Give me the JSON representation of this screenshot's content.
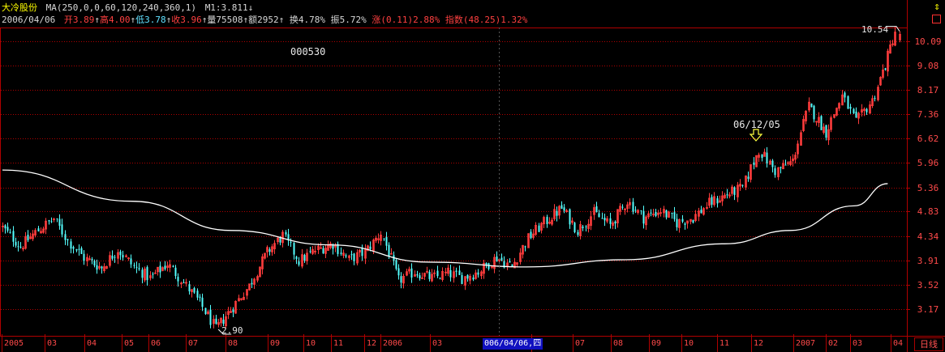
{
  "info": {
    "name": "大冷股份",
    "ma_label": "MA(250,0,0,60,120,240,360,1)",
    "m1_label": "M1:3.811",
    "m1_arrow": "↓",
    "date": "2006/04/06",
    "open_label": "开",
    "open": "3.89",
    "open_arrow": "↑",
    "high_label": "高",
    "high": "4.00",
    "high_arrow": "↑",
    "low_label": "低",
    "low": "3.78",
    "low_arrow": "↑",
    "close_label": "收",
    "close": "3.96",
    "close_arrow": "↑",
    "volume_label": "量",
    "volume": "75508",
    "volume_arrow": "↑",
    "amount_label": "额",
    "amount": "2952",
    "amount_arrow": "↑",
    "turnover_label": "换",
    "turnover": "4.78%",
    "amplitude_label": "振",
    "amplitude": "5.72%",
    "change_label": "涨",
    "change": "(0.11)2.88%",
    "index_label": "指数",
    "index": "(48.25)1.32%"
  },
  "controls": {
    "top_arrow": "⇕"
  },
  "chart": {
    "code": "000530",
    "signal_date": "06/12/05",
    "high_value": "10.54",
    "low_value": "2.90",
    "cursor_date": "006/04/06,四",
    "period": "日线",
    "y_ticks": [
      "10.09",
      "9.08",
      "8.17",
      "7.36",
      "6.62",
      "5.96",
      "5.36",
      "4.83",
      "4.34",
      "3.91",
      "3.52",
      "3.17"
    ],
    "x_ticks": [
      "2005",
      "03",
      "04",
      "05",
      "06",
      "07",
      "08",
      "09",
      "10",
      "11",
      "12",
      "2006",
      "03",
      "06",
      "07",
      "08",
      "09",
      "10",
      "11",
      "12",
      "2007",
      "02",
      "03",
      "04"
    ]
  },
  "colors": {
    "background": "#000000",
    "up_candle": "#ff3c3c",
    "down_candle": "#54ffff",
    "grid": "#b00000",
    "ma_line": "#ffffff",
    "axis_text": "#ff4a4a"
  },
  "chart_data": {
    "type": "candlestick",
    "title": "大冷股份 000530",
    "period": "日线",
    "log_scale": true,
    "ylim": [
      2.85,
      10.6
    ],
    "x_range": [
      "2005-01",
      "2007-04"
    ],
    "grid": true,
    "y_ticks": [
      10.09,
      9.08,
      8.17,
      7.36,
      6.62,
      5.96,
      5.36,
      4.83,
      4.34,
      3.91,
      3.52,
      3.17
    ],
    "high_marker": 10.54,
    "low_marker": 2.9,
    "signal_date": "06/12/05",
    "price_path": [
      {
        "date": "2005-01",
        "close": 4.55
      },
      {
        "date": "2005-01-20",
        "close": 4.15
      },
      {
        "date": "2005-02-05",
        "close": 4.45
      },
      {
        "date": "2005-02-20",
        "close": 4.68
      },
      {
        "date": "2005-03-05",
        "close": 4.25
      },
      {
        "date": "2005-03-20",
        "close": 3.95
      },
      {
        "date": "2005-04-05",
        "close": 3.78
      },
      {
        "date": "2005-04-20",
        "close": 4.1
      },
      {
        "date": "2005-05-05",
        "close": 3.8
      },
      {
        "date": "2005-05-20",
        "close": 3.62
      },
      {
        "date": "2005-06-05",
        "close": 3.85
      },
      {
        "date": "2005-06-20",
        "close": 3.55
      },
      {
        "date": "2005-07-05",
        "close": 3.25
      },
      {
        "date": "2005-07-20",
        "close": 2.9
      },
      {
        "date": "2005-08-05",
        "close": 3.2
      },
      {
        "date": "2005-08-20",
        "close": 3.5
      },
      {
        "date": "2005-09-05",
        "close": 4.05
      },
      {
        "date": "2005-09-20",
        "close": 4.35
      },
      {
        "date": "2005-10-05",
        "close": 3.9
      },
      {
        "date": "2005-10-20",
        "close": 4.08
      },
      {
        "date": "2005-11-05",
        "close": 4.2
      },
      {
        "date": "2005-11-20",
        "close": 3.92
      },
      {
        "date": "2005-12-05",
        "close": 4.05
      },
      {
        "date": "2005-12-20",
        "close": 4.4
      },
      {
        "date": "2006-01-05",
        "close": 3.58
      },
      {
        "date": "2006-01-20",
        "close": 3.72
      },
      {
        "date": "2006-02-05",
        "close": 3.62
      },
      {
        "date": "2006-02-20",
        "close": 3.7
      },
      {
        "date": "2006-03-05",
        "close": 3.62
      },
      {
        "date": "2006-03-20",
        "close": 3.72
      },
      {
        "date": "2006-04-06",
        "close": 3.96
      },
      {
        "date": "2006-04-20",
        "close": 3.8
      },
      {
        "date": "2006-05-05",
        "close": 4.3
      },
      {
        "date": "2006-05-20",
        "close": 4.6
      },
      {
        "date": "2006-06-05",
        "close": 4.9
      },
      {
        "date": "2006-06-20",
        "close": 4.45
      },
      {
        "date": "2006-07-05",
        "close": 4.8
      },
      {
        "date": "2006-07-20",
        "close": 4.55
      },
      {
        "date": "2006-08-05",
        "close": 5.05
      },
      {
        "date": "2006-08-20",
        "close": 4.7
      },
      {
        "date": "2006-09-05",
        "close": 4.85
      },
      {
        "date": "2006-09-20",
        "close": 4.6
      },
      {
        "date": "2006-10-05",
        "close": 4.7
      },
      {
        "date": "2006-10-20",
        "close": 5.0
      },
      {
        "date": "2006-11-05",
        "close": 5.2
      },
      {
        "date": "2006-11-20",
        "close": 5.35
      },
      {
        "date": "2006-12-05",
        "close": 6.3
      },
      {
        "date": "2006-12-20",
        "close": 5.75
      },
      {
        "date": "2007-01-05",
        "close": 6.0
      },
      {
        "date": "2007-01-20",
        "close": 7.6
      },
      {
        "date": "2007-02-05",
        "close": 6.8
      },
      {
        "date": "2007-02-20",
        "close": 7.95
      },
      {
        "date": "2007-03-05",
        "close": 7.1
      },
      {
        "date": "2007-03-20",
        "close": 7.8
      },
      {
        "date": "2007-04-01",
        "close": 9.1
      },
      {
        "date": "2007-04-10",
        "close": 10.54
      }
    ],
    "ma_series": {
      "name": "MA250",
      "points": [
        {
          "date": "2005-01",
          "value": 5.78
        },
        {
          "date": "2005-05",
          "value": 5.05
        },
        {
          "date": "2005-08",
          "value": 4.45
        },
        {
          "date": "2005-11",
          "value": 4.18
        },
        {
          "date": "2006-02",
          "value": 3.88
        },
        {
          "date": "2006-05",
          "value": 3.8
        },
        {
          "date": "2006-08",
          "value": 3.92
        },
        {
          "date": "2006-11",
          "value": 4.2
        },
        {
          "date": "2007-01",
          "value": 4.45
        },
        {
          "date": "2007-03",
          "value": 4.95
        },
        {
          "date": "2007-04",
          "value": 5.45
        }
      ]
    }
  }
}
